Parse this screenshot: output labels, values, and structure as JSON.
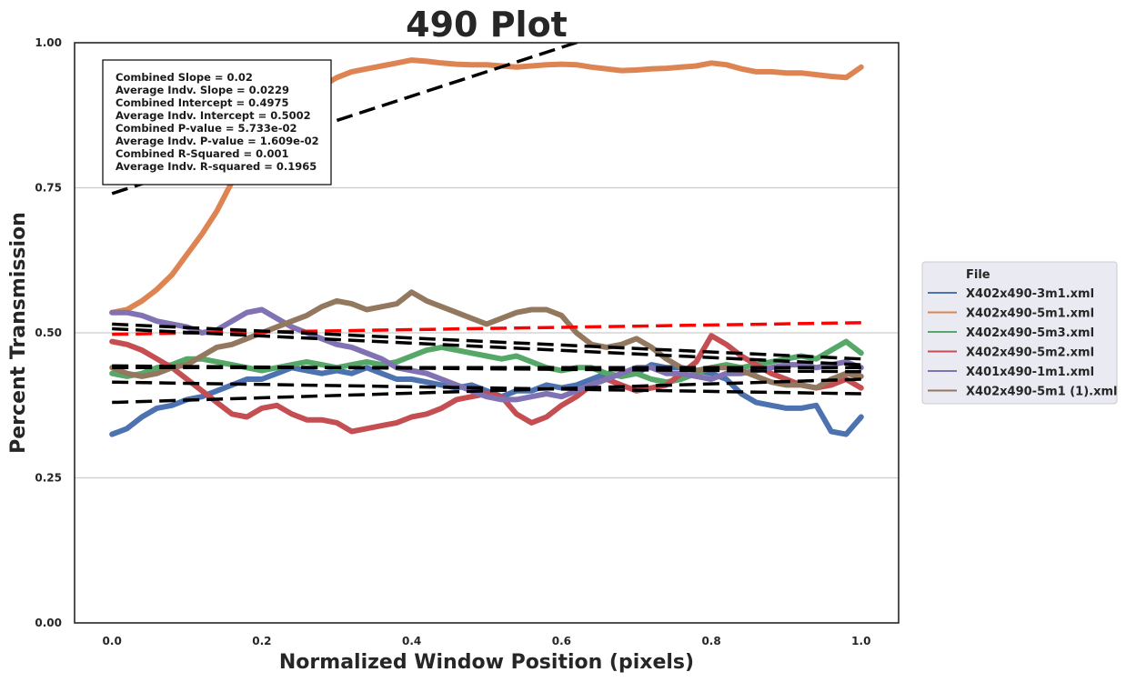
{
  "chart_data": {
    "type": "line",
    "title": "490 Plot",
    "xlabel": "Normalized Window Position (pixels)",
    "ylabel": "Percent Transmission",
    "xlim": [
      -0.05,
      1.05
    ],
    "ylim": [
      0.0,
      1.0
    ],
    "xticks": [
      0.0,
      0.2,
      0.4,
      0.6,
      0.8,
      1.0
    ],
    "xtick_labels": [
      "0.0",
      "0.2",
      "0.4",
      "0.6",
      "0.8",
      "1.0"
    ],
    "yticks": [
      0.0,
      0.25,
      0.5,
      0.75,
      1.0
    ],
    "ytick_labels": [
      "0.00",
      "0.25",
      "0.50",
      "0.75",
      "1.00"
    ],
    "grid": "horizontal",
    "legend": {
      "title": "File",
      "placement": "right-outside"
    },
    "stats_box": [
      "Combined Slope = 0.02",
      "Average Indv. Slope = 0.0229",
      "Combined Intercept = 0.4975",
      "Average Indv. Intercept = 0.5002",
      "Combined P-value = 5.733e-02",
      "Average Indv. P-value = 1.609e-02",
      "Combined R-Squared = 0.001",
      "Average Indv. R-squared = 0.1965"
    ],
    "series": [
      {
        "name": "X402x490-3m1.xml",
        "color": "#4c72b0",
        "x": [
          0.0,
          0.02,
          0.04,
          0.06,
          0.08,
          0.1,
          0.12,
          0.14,
          0.16,
          0.18,
          0.2,
          0.22,
          0.24,
          0.26,
          0.28,
          0.3,
          0.32,
          0.34,
          0.36,
          0.38,
          0.4,
          0.42,
          0.44,
          0.46,
          0.48,
          0.5,
          0.52,
          0.54,
          0.56,
          0.58,
          0.6,
          0.62,
          0.64,
          0.66,
          0.68,
          0.7,
          0.72,
          0.74,
          0.76,
          0.78,
          0.8,
          0.82,
          0.84,
          0.86,
          0.88,
          0.9,
          0.92,
          0.94,
          0.96,
          0.98,
          1.0
        ],
        "y": [
          0.325,
          0.335,
          0.355,
          0.37,
          0.375,
          0.385,
          0.39,
          0.4,
          0.41,
          0.42,
          0.42,
          0.43,
          0.44,
          0.435,
          0.43,
          0.435,
          0.43,
          0.44,
          0.43,
          0.42,
          0.42,
          0.415,
          0.41,
          0.405,
          0.41,
          0.4,
          0.39,
          0.4,
          0.4,
          0.41,
          0.405,
          0.41,
          0.42,
          0.43,
          0.425,
          0.43,
          0.445,
          0.44,
          0.44,
          0.435,
          0.43,
          0.42,
          0.395,
          0.38,
          0.375,
          0.37,
          0.37,
          0.375,
          0.33,
          0.325,
          0.355
        ]
      },
      {
        "name": "X402x490-5m1.xml",
        "color": "#dd8452",
        "x": [
          0.0,
          0.02,
          0.04,
          0.06,
          0.08,
          0.1,
          0.12,
          0.14,
          0.16,
          0.18,
          0.2,
          0.22,
          0.24,
          0.26,
          0.28,
          0.3,
          0.32,
          0.34,
          0.36,
          0.38,
          0.4,
          0.42,
          0.44,
          0.46,
          0.48,
          0.5,
          0.52,
          0.54,
          0.56,
          0.58,
          0.6,
          0.62,
          0.64,
          0.66,
          0.68,
          0.7,
          0.72,
          0.74,
          0.76,
          0.78,
          0.8,
          0.82,
          0.84,
          0.86,
          0.88,
          0.9,
          0.92,
          0.94,
          0.96,
          0.98,
          1.0
        ],
        "y": [
          0.535,
          0.54,
          0.555,
          0.575,
          0.6,
          0.635,
          0.67,
          0.71,
          0.76,
          0.8,
          0.84,
          0.87,
          0.89,
          0.91,
          0.925,
          0.94,
          0.95,
          0.955,
          0.96,
          0.965,
          0.97,
          0.968,
          0.965,
          0.963,
          0.962,
          0.962,
          0.96,
          0.958,
          0.96,
          0.962,
          0.963,
          0.962,
          0.958,
          0.955,
          0.952,
          0.953,
          0.955,
          0.956,
          0.958,
          0.96,
          0.965,
          0.962,
          0.955,
          0.95,
          0.95,
          0.948,
          0.948,
          0.945,
          0.942,
          0.94,
          0.958
        ]
      },
      {
        "name": "X402x490-5m3.xml",
        "color": "#55a868",
        "x": [
          0.0,
          0.02,
          0.04,
          0.06,
          0.08,
          0.1,
          0.12,
          0.14,
          0.16,
          0.18,
          0.2,
          0.22,
          0.24,
          0.26,
          0.28,
          0.3,
          0.32,
          0.34,
          0.36,
          0.38,
          0.4,
          0.42,
          0.44,
          0.46,
          0.48,
          0.5,
          0.52,
          0.54,
          0.56,
          0.58,
          0.6,
          0.62,
          0.64,
          0.66,
          0.68,
          0.7,
          0.72,
          0.74,
          0.76,
          0.78,
          0.8,
          0.82,
          0.84,
          0.86,
          0.88,
          0.9,
          0.92,
          0.94,
          0.96,
          0.98,
          1.0
        ],
        "y": [
          0.43,
          0.425,
          0.43,
          0.44,
          0.445,
          0.455,
          0.455,
          0.45,
          0.445,
          0.44,
          0.435,
          0.44,
          0.445,
          0.45,
          0.445,
          0.44,
          0.445,
          0.45,
          0.445,
          0.45,
          0.46,
          0.47,
          0.475,
          0.47,
          0.465,
          0.46,
          0.455,
          0.46,
          0.45,
          0.44,
          0.435,
          0.44,
          0.44,
          0.43,
          0.425,
          0.43,
          0.42,
          0.415,
          0.42,
          0.43,
          0.44,
          0.445,
          0.44,
          0.445,
          0.45,
          0.455,
          0.46,
          0.455,
          0.47,
          0.485,
          0.465
        ]
      },
      {
        "name": "X402x490-5m2.xml",
        "color": "#c44e52",
        "x": [
          0.0,
          0.02,
          0.04,
          0.06,
          0.08,
          0.1,
          0.12,
          0.14,
          0.16,
          0.18,
          0.2,
          0.22,
          0.24,
          0.26,
          0.28,
          0.3,
          0.32,
          0.34,
          0.36,
          0.38,
          0.4,
          0.42,
          0.44,
          0.46,
          0.48,
          0.5,
          0.52,
          0.54,
          0.56,
          0.58,
          0.6,
          0.62,
          0.64,
          0.66,
          0.68,
          0.7,
          0.72,
          0.74,
          0.76,
          0.78,
          0.8,
          0.82,
          0.84,
          0.86,
          0.88,
          0.9,
          0.92,
          0.94,
          0.96,
          0.98,
          1.0
        ],
        "y": [
          0.485,
          0.48,
          0.47,
          0.455,
          0.44,
          0.42,
          0.4,
          0.38,
          0.36,
          0.355,
          0.37,
          0.375,
          0.36,
          0.35,
          0.35,
          0.345,
          0.33,
          0.335,
          0.34,
          0.345,
          0.355,
          0.36,
          0.37,
          0.385,
          0.39,
          0.395,
          0.39,
          0.36,
          0.345,
          0.355,
          0.375,
          0.39,
          0.41,
          0.42,
          0.41,
          0.4,
          0.405,
          0.41,
          0.43,
          0.45,
          0.495,
          0.48,
          0.46,
          0.445,
          0.43,
          0.42,
          0.41,
          0.405,
          0.41,
          0.42,
          0.405
        ]
      },
      {
        "name": "X401x490-1m1.xml",
        "color": "#8172b3",
        "x": [
          0.0,
          0.02,
          0.04,
          0.06,
          0.08,
          0.1,
          0.12,
          0.14,
          0.16,
          0.18,
          0.2,
          0.22,
          0.24,
          0.26,
          0.28,
          0.3,
          0.32,
          0.34,
          0.36,
          0.38,
          0.4,
          0.42,
          0.44,
          0.46,
          0.48,
          0.5,
          0.52,
          0.54,
          0.56,
          0.58,
          0.6,
          0.62,
          0.64,
          0.66,
          0.68,
          0.7,
          0.72,
          0.74,
          0.76,
          0.78,
          0.8,
          0.82,
          0.84,
          0.86,
          0.88,
          0.9,
          0.92,
          0.94,
          0.96,
          0.98,
          1.0
        ],
        "y": [
          0.535,
          0.535,
          0.53,
          0.52,
          0.515,
          0.51,
          0.5,
          0.505,
          0.52,
          0.535,
          0.54,
          0.525,
          0.51,
          0.5,
          0.49,
          0.48,
          0.475,
          0.465,
          0.455,
          0.44,
          0.435,
          0.43,
          0.42,
          0.41,
          0.4,
          0.39,
          0.385,
          0.385,
          0.39,
          0.395,
          0.39,
          0.4,
          0.41,
          0.42,
          0.43,
          0.44,
          0.44,
          0.43,
          0.43,
          0.425,
          0.42,
          0.43,
          0.43,
          0.435,
          0.44,
          0.445,
          0.445,
          0.44,
          0.445,
          0.45,
          0.44
        ]
      },
      {
        "name": "X402x490-5m1 (1).xml",
        "color": "#937860",
        "x": [
          0.0,
          0.02,
          0.04,
          0.06,
          0.08,
          0.1,
          0.12,
          0.14,
          0.16,
          0.18,
          0.2,
          0.22,
          0.24,
          0.26,
          0.28,
          0.3,
          0.32,
          0.34,
          0.36,
          0.38,
          0.4,
          0.42,
          0.44,
          0.46,
          0.48,
          0.5,
          0.52,
          0.54,
          0.56,
          0.58,
          0.6,
          0.62,
          0.64,
          0.66,
          0.68,
          0.7,
          0.72,
          0.74,
          0.76,
          0.78,
          0.8,
          0.82,
          0.84,
          0.86,
          0.88,
          0.9,
          0.92,
          0.94,
          0.96,
          0.98,
          1.0
        ],
        "y": [
          0.44,
          0.43,
          0.425,
          0.43,
          0.44,
          0.445,
          0.46,
          0.475,
          0.48,
          0.49,
          0.5,
          0.51,
          0.52,
          0.53,
          0.545,
          0.555,
          0.55,
          0.54,
          0.545,
          0.55,
          0.57,
          0.555,
          0.545,
          0.535,
          0.525,
          0.515,
          0.525,
          0.535,
          0.54,
          0.54,
          0.53,
          0.5,
          0.48,
          0.475,
          0.48,
          0.49,
          0.475,
          0.455,
          0.44,
          0.435,
          0.44,
          0.44,
          0.435,
          0.425,
          0.415,
          0.41,
          0.41,
          0.405,
          0.42,
          0.43,
          0.425
        ]
      }
    ],
    "fit_lines": [
      {
        "color": "#000000",
        "x": [
          0.0,
          1.0
        ],
        "y": [
          0.74,
          1.16
        ]
      },
      {
        "color": "#ff0000",
        "x": [
          0.0,
          1.0
        ],
        "y": [
          0.4975,
          0.5175
        ]
      },
      {
        "color": "#000000",
        "x": [
          0.0,
          1.0
        ],
        "y": [
          0.515,
          0.455
        ]
      },
      {
        "color": "#000000",
        "x": [
          0.0,
          1.0
        ],
        "y": [
          0.507,
          0.445
        ]
      },
      {
        "color": "#000000",
        "x": [
          0.0,
          1.0
        ],
        "y": [
          0.443,
          0.433
        ]
      },
      {
        "color": "#000000",
        "x": [
          0.0,
          1.0
        ],
        "y": [
          0.44,
          0.44
        ]
      },
      {
        "color": "#000000",
        "x": [
          0.0,
          1.0
        ],
        "y": [
          0.415,
          0.395
        ]
      },
      {
        "color": "#000000",
        "x": [
          0.0,
          1.0
        ],
        "y": [
          0.38,
          0.42
        ]
      }
    ]
  }
}
